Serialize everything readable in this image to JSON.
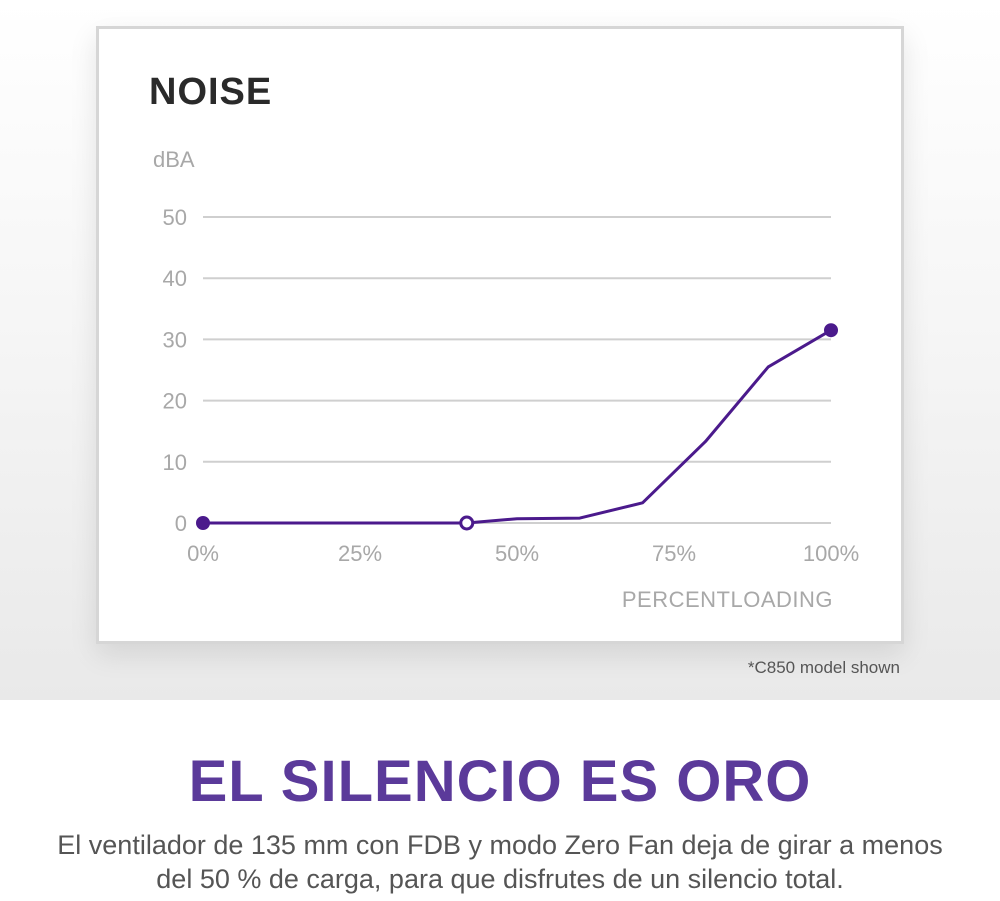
{
  "chart_data": {
    "type": "line",
    "title": "NOISE",
    "ylabel": "dBA",
    "xlabel": "PERCENTLOADING",
    "ylim": [
      0,
      50
    ],
    "xlim": [
      0,
      100
    ],
    "yticks": [
      0,
      10,
      20,
      30,
      40,
      50
    ],
    "xtick_labels": [
      "0%",
      "25%",
      "50%",
      "75%",
      "100%"
    ],
    "grid": true,
    "series": [
      {
        "color": "#4b1a8c",
        "points": [
          {
            "x": 0,
            "y": 0
          },
          {
            "x": 42,
            "y": 0
          },
          {
            "x": 50,
            "y": 0.7
          },
          {
            "x": 60,
            "y": 0.8
          },
          {
            "x": 70,
            "y": 3.3
          },
          {
            "x": 80,
            "y": 13.3
          },
          {
            "x": 90,
            "y": 25.5
          },
          {
            "x": 100,
            "y": 31.5
          }
        ],
        "markers": [
          {
            "x": 0,
            "y": 0,
            "style": "filled"
          },
          {
            "x": 42,
            "y": 0,
            "style": "hollow"
          },
          {
            "x": 100,
            "y": 31.5,
            "style": "filled"
          }
        ]
      }
    ]
  },
  "footnote": "*C850 model shown",
  "headline": "EL SILENCIO ES ORO",
  "description": "El ventilador de 135 mm con FDB y modo Zero Fan deja de girar a menos del 50 % de carga, para que disfrutes de un silencio total.",
  "colors": {
    "accent": "#5b3a9a",
    "line": "#4b1a8c",
    "grid": "#cfcfcf",
    "axis_text": "#a8a8a8"
  }
}
